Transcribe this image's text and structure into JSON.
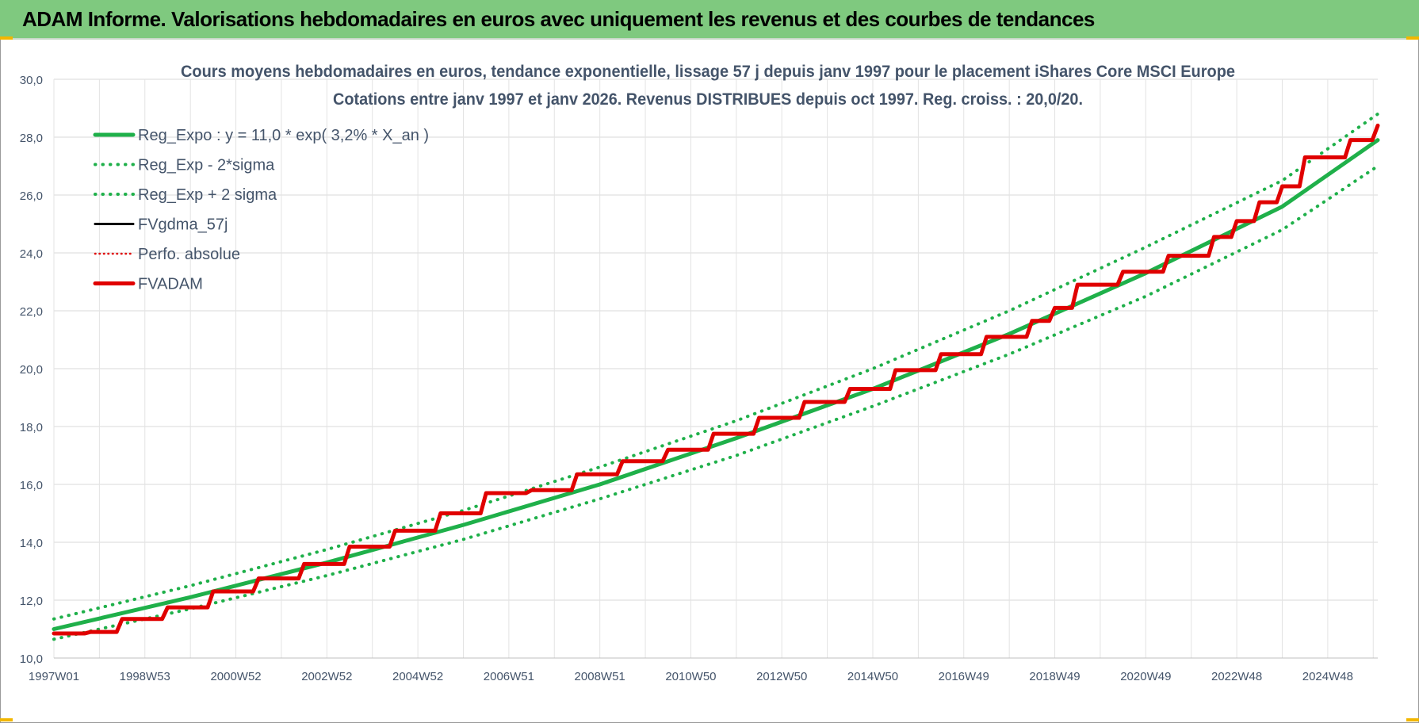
{
  "banner": {
    "title": "ADAM Informe. Valorisations hebdomadaires en euros avec uniquement les revenus et des courbes de tendances",
    "background": "#7fc97f"
  },
  "chart_data": {
    "type": "line",
    "title": "Cours moyens hebdomadaires en euros, tendance exponentielle, lissage 57 j depuis janv 1997 pour le placement iShares Core MSCI Europe",
    "subtitle": "Cotations entre janv 1997 et janv 2026. Revenus DISTRIBUES depuis oct 1997. Reg. croiss. : 20,0/20.",
    "xlabel": "",
    "ylabel": "",
    "x_range": [
      1997.0,
      2026.1
    ],
    "ylim": [
      10,
      30
    ],
    "y_ticks": [
      10,
      12,
      14,
      16,
      18,
      20,
      22,
      24,
      26,
      28,
      30
    ],
    "y_tick_labels": [
      "10,0",
      "12,0",
      "14,0",
      "16,0",
      "18,0",
      "20,0",
      "22,0",
      "24,0",
      "26,0",
      "28,0",
      "30,0"
    ],
    "x_ticks": [
      {
        "x": 1997.0,
        "label": "1997W01"
      },
      {
        "x": 1999.0,
        "label": "1998W53"
      },
      {
        "x": 2001.0,
        "label": "2000W52"
      },
      {
        "x": 2003.0,
        "label": "2002W52"
      },
      {
        "x": 2005.0,
        "label": "2004W52"
      },
      {
        "x": 2007.0,
        "label": "2006W51"
      },
      {
        "x": 2009.0,
        "label": "2008W51"
      },
      {
        "x": 2011.0,
        "label": "2010W50"
      },
      {
        "x": 2013.0,
        "label": "2012W50"
      },
      {
        "x": 2015.0,
        "label": "2014W50"
      },
      {
        "x": 2017.0,
        "label": "2016W49"
      },
      {
        "x": 2019.0,
        "label": "2018W49"
      },
      {
        "x": 2021.0,
        "label": "2020W49"
      },
      {
        "x": 2023.0,
        "label": "2022W48"
      },
      {
        "x": 2025.0,
        "label": "2024W48"
      }
    ],
    "grid": true,
    "legend_position": "top-left",
    "series": [
      {
        "name": "Reg_Expo : y = 11,0 * exp( 3,2% *  X_an )",
        "color": "#1fb04a",
        "style": "solid",
        "x": [
          1997,
          2000,
          2003,
          2006,
          2009,
          2012,
          2015,
          2018,
          2021,
          2024,
          2026.1
        ],
        "values": [
          11.0,
          12.1,
          13.3,
          14.6,
          16.0,
          17.6,
          19.3,
          21.2,
          23.3,
          25.6,
          27.9
        ]
      },
      {
        "name": "Reg_Exp - 2*sigma",
        "color": "#1fb04a",
        "style": "dotted",
        "x": [
          1997,
          2000,
          2003,
          2006,
          2009,
          2012,
          2015,
          2018,
          2021,
          2024,
          2026.1
        ],
        "values": [
          10.65,
          11.7,
          12.85,
          14.1,
          15.5,
          17.0,
          18.7,
          20.5,
          22.5,
          24.8,
          27.0
        ]
      },
      {
        "name": "Reg_Exp + 2 sigma",
        "color": "#1fb04a",
        "style": "dotted",
        "x": [
          1997,
          2000,
          2003,
          2006,
          2009,
          2012,
          2015,
          2018,
          2021,
          2024,
          2026.1
        ],
        "values": [
          11.35,
          12.5,
          13.75,
          15.1,
          16.6,
          18.2,
          20.0,
          22.0,
          24.2,
          26.5,
          28.8
        ]
      },
      {
        "name": "FVgdma_57j",
        "color": "#000000",
        "style": "solid",
        "x": [
          1997.0,
          1997.8,
          1998.5,
          1999.5,
          2000.5,
          2001.5,
          2002.5,
          2003.5,
          2004.5,
          2005.5,
          2006.5,
          2007.5,
          2008.5,
          2009.5,
          2010.5,
          2011.5,
          2012.5,
          2013.5,
          2014.5,
          2015.5,
          2016.5,
          2017.5,
          2018.5,
          2019.0,
          2019.5,
          2020.5,
          2021.5,
          2022.5,
          2023.0,
          2023.5,
          2024.0,
          2024.5,
          2025.5,
          2026.1
        ],
        "values": [
          10.85,
          10.9,
          11.35,
          11.75,
          12.3,
          12.75,
          13.25,
          13.85,
          14.4,
          15.0,
          15.7,
          15.8,
          16.35,
          16.8,
          17.2,
          17.75,
          18.3,
          18.85,
          19.3,
          19.95,
          20.5,
          21.1,
          21.65,
          22.1,
          22.9,
          23.35,
          23.9,
          24.55,
          25.1,
          25.75,
          26.3,
          27.3,
          27.9,
          28.4
        ]
      },
      {
        "name": "Perfo. absolue",
        "color": "#e00000",
        "style": "dotted",
        "x": [
          1997.0,
          1997.8,
          1998.5,
          1999.5,
          2000.5,
          2001.5,
          2002.5,
          2003.5,
          2004.5,
          2005.5,
          2006.5,
          2007.5,
          2008.5,
          2009.5,
          2010.5,
          2011.5,
          2012.5,
          2013.5,
          2014.5,
          2015.5,
          2016.5,
          2017.5,
          2018.5,
          2019.0,
          2019.5,
          2020.5,
          2021.5,
          2022.5,
          2023.0,
          2023.5,
          2024.0,
          2024.5,
          2025.5,
          2026.1
        ],
        "values": [
          10.85,
          10.9,
          11.35,
          11.75,
          12.3,
          12.75,
          13.25,
          13.85,
          14.4,
          15.0,
          15.7,
          15.8,
          16.35,
          16.8,
          17.2,
          17.75,
          18.3,
          18.85,
          19.3,
          19.95,
          20.5,
          21.1,
          21.65,
          22.1,
          22.9,
          23.35,
          23.9,
          24.55,
          25.1,
          25.75,
          26.3,
          27.3,
          27.9,
          28.4
        ]
      },
      {
        "name": "FVADAM",
        "color": "#e00000",
        "style": "solid",
        "x": [
          1997.0,
          1997.8,
          1998.5,
          1999.5,
          2000.5,
          2001.5,
          2002.5,
          2003.5,
          2004.5,
          2005.5,
          2006.5,
          2007.5,
          2008.5,
          2009.5,
          2010.5,
          2011.5,
          2012.5,
          2013.5,
          2014.5,
          2015.5,
          2016.5,
          2017.5,
          2018.5,
          2019.0,
          2019.5,
          2020.5,
          2021.5,
          2022.5,
          2023.0,
          2023.5,
          2024.0,
          2024.5,
          2025.5,
          2026.1
        ],
        "values": [
          10.85,
          10.9,
          11.35,
          11.75,
          12.3,
          12.75,
          13.25,
          13.85,
          14.4,
          15.0,
          15.7,
          15.8,
          16.35,
          16.8,
          17.2,
          17.75,
          18.3,
          18.85,
          19.3,
          19.95,
          20.5,
          21.1,
          21.65,
          22.1,
          22.9,
          23.35,
          23.9,
          24.55,
          25.1,
          25.75,
          26.3,
          27.3,
          27.9,
          28.4
        ]
      }
    ]
  }
}
